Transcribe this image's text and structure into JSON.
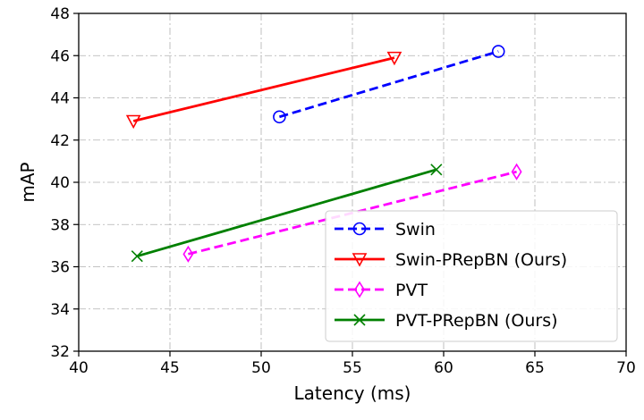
{
  "chart_data": {
    "type": "line",
    "title": "",
    "xlabel": "Latency (ms)",
    "ylabel": "mAP",
    "xlim": [
      40,
      70
    ],
    "ylim": [
      32,
      48
    ],
    "xticks": [
      "40",
      "45",
      "50",
      "55",
      "60",
      "65",
      "70"
    ],
    "yticks": [
      "32",
      "34",
      "36",
      "38",
      "40",
      "42",
      "44",
      "46",
      "48"
    ],
    "grid": true,
    "legend_position": "lower-right",
    "series": [
      {
        "name": "Swin",
        "x": [
          51.0,
          63.0
        ],
        "y": [
          43.1,
          46.2
        ],
        "color": "#0000ff",
        "dashed": true,
        "marker": "circle"
      },
      {
        "name": "Swin-PRepBN (Ours)",
        "x": [
          43.0,
          57.3
        ],
        "y": [
          42.9,
          45.9
        ],
        "color": "#ff0000",
        "dashed": false,
        "marker": "triangle-down"
      },
      {
        "name": "PVT",
        "x": [
          46.0,
          64.0
        ],
        "y": [
          36.6,
          40.5
        ],
        "color": "#ff00ff",
        "dashed": true,
        "marker": "thin-diamond"
      },
      {
        "name": "PVT-PRepBN (Ours)",
        "x": [
          43.2,
          59.6
        ],
        "y": [
          36.5,
          40.6
        ],
        "color": "#008000",
        "dashed": false,
        "marker": "x"
      }
    ]
  }
}
